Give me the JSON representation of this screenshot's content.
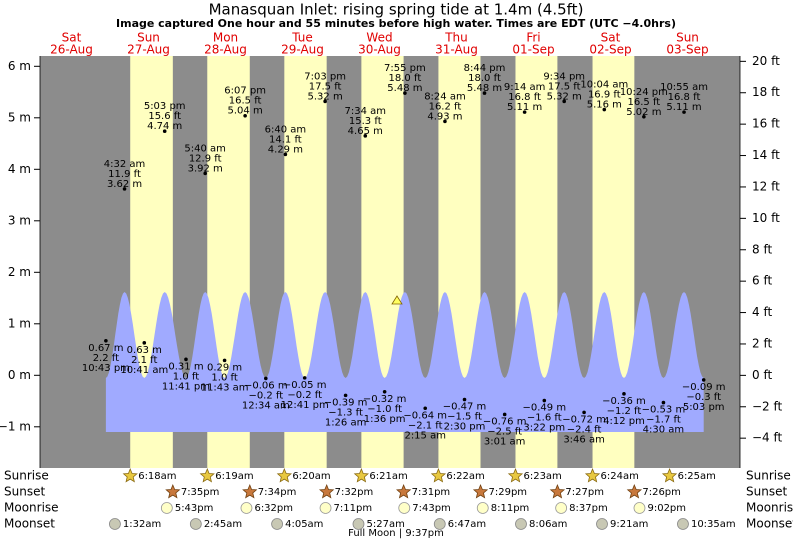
{
  "chart_data": {
    "type": "tide",
    "title": "Manasquan Inlet: rising  spring tide at 1.4m (4.5ft)",
    "subtitle": "Image captured One hour and 55 minutes before high water. Times are EDT (UTC −4.0hrs)",
    "days": [
      "Sat",
      "Sun",
      "Mon",
      "Tue",
      "Wed",
      "Thu",
      "Fri",
      "Sat",
      "Sun"
    ],
    "dates": [
      "26-Aug",
      "27-Aug",
      "28-Aug",
      "29-Aug",
      "30-Aug",
      "31-Aug",
      "01-Sep",
      "02-Sep",
      "03-Sep"
    ],
    "ylim": [
      -1.8,
      6.2
    ],
    "yticks": [
      {
        "value": -1,
        "label": "−1 m"
      },
      {
        "value": 0,
        "label": "0 m"
      },
      {
        "value": 1,
        "label": "1 m"
      },
      {
        "value": 2,
        "label": "2 m"
      },
      {
        "value": 3,
        "label": "3 m"
      },
      {
        "value": 4,
        "label": "4 m"
      },
      {
        "value": 5,
        "label": "5 m"
      },
      {
        "value": 6,
        "label": "6 m"
      }
    ],
    "y2lim": [
      -5.9,
      20.34
    ],
    "y2ticks": [
      {
        "value": -4,
        "label": "−4 ft"
      },
      {
        "value": -2,
        "label": "−2 ft"
      },
      {
        "value": 0,
        "label": "0 ft"
      },
      {
        "value": 2,
        "label": "2 ft"
      },
      {
        "value": 4,
        "label": "4 ft"
      },
      {
        "value": 6,
        "label": "6 ft"
      },
      {
        "value": 8,
        "label": "8 ft"
      },
      {
        "value": 10,
        "label": "10 ft"
      },
      {
        "value": 12,
        "label": "12 ft"
      },
      {
        "value": 14,
        "label": "14 ft"
      },
      {
        "value": 16,
        "label": "16 ft"
      },
      {
        "value": 18,
        "label": "18 ft"
      },
      {
        "value": 20,
        "label": "20 ft"
      }
    ],
    "tides": {
      "times": [
        "10:43 pm",
        "4:32 am",
        "10:41 am",
        "5:03 pm",
        "11:41 pm",
        "5:40 am",
        "11:43 am",
        "6:07 pm",
        "12:34 am",
        "6:40 am",
        "12:41 pm",
        "7:03 pm",
        "1:26 am",
        "7:34 am",
        "1:36 pm",
        "7:55 pm",
        "2:15 am",
        "8:24 am",
        "2:30 pm",
        "8:44 pm",
        "3:01 am",
        "9:14 am",
        "3:22 pm",
        "9:34 pm",
        "3:46 am",
        "10:04 am",
        "4:12 pm",
        "10:24 pm",
        "4:30 am",
        "10:55 am",
        "5:03 pm"
      ],
      "values": [
        0.67,
        3.62,
        0.63,
        4.74,
        0.31,
        3.92,
        0.29,
        5.04,
        -0.06,
        4.29,
        -0.05,
        5.32,
        -0.39,
        4.65,
        -0.32,
        5.48,
        -0.64,
        4.93,
        -0.47,
        5.48,
        -0.76,
        5.11,
        -0.49,
        5.32,
        -0.72,
        5.16,
        -0.36,
        5.02,
        -0.53,
        5.11,
        -0.09
      ],
      "value_labels": [
        "0.67 m",
        "3.62 m",
        "0.63 m",
        "4.74 m",
        "0.31 m",
        "3.92 m",
        "0.29 m",
        "5.04 m",
        "−0.06 m",
        "4.29 m",
        "−0.05 m",
        "5.32 m",
        "−0.39 m",
        "4.65 m",
        "−0.32 m",
        "5.48 m",
        "−0.64 m",
        "4.93 m",
        "−0.47 m",
        "5.48 m",
        "−0.76 m",
        "5.11 m",
        "−0.49 m",
        "5.32 m",
        "−0.72 m",
        "5.16 m",
        "−0.36 m",
        "5.02 m",
        "−0.53 m",
        "5.11 m",
        "−0.09 m"
      ],
      "ft_labels": [
        "2.2 ft",
        "11.9 ft",
        "2.1 ft",
        "15.6 ft",
        "1.0 ft",
        "12.9 ft",
        "1.0 ft",
        "16.5 ft",
        "−0.2 ft",
        "14.1 ft",
        "−0.2 ft",
        "17.5 ft",
        "−1.3 ft",
        "15.3 ft",
        "−1.0 ft",
        "18.0 ft",
        "−2.1 ft",
        "16.2 ft",
        "−1.5 ft",
        "18.0 ft",
        "−2.5 ft",
        "16.8 ft",
        "−1.6 ft",
        "17.5 ft",
        "−2.4 ft",
        "16.9 ft",
        "−1.2 ft",
        "16.5 ft",
        "−1.7 ft",
        "16.8 ft",
        "−0.3 ft"
      ]
    },
    "rows": [
      {
        "label": "Sunrise",
        "times": [
          null,
          "6:18am",
          "6:19am",
          "6:20am",
          "6:21am",
          "6:22am",
          "6:23am",
          "6:24am",
          "6:25am"
        ]
      },
      {
        "label": "Sunset",
        "times": [
          null,
          "7:35pm",
          "7:34pm",
          "7:32pm",
          "7:31pm",
          "7:29pm",
          "7:27pm",
          "7:26pm",
          null
        ]
      },
      {
        "label": "Moonrise",
        "times": [
          null,
          "5:43pm",
          "6:32pm",
          "7:11pm",
          "7:43pm",
          "8:11pm",
          "8:37pm",
          "9:02pm",
          null
        ]
      },
      {
        "label": "Moonset",
        "times": [
          null,
          "1:32am",
          "2:45am",
          "4:05am",
          "5:27am",
          "6:47am",
          "8:06am",
          "9:21am",
          "10:35am"
        ]
      }
    ],
    "moon_phase": "Full Moon | 9:37pm"
  }
}
